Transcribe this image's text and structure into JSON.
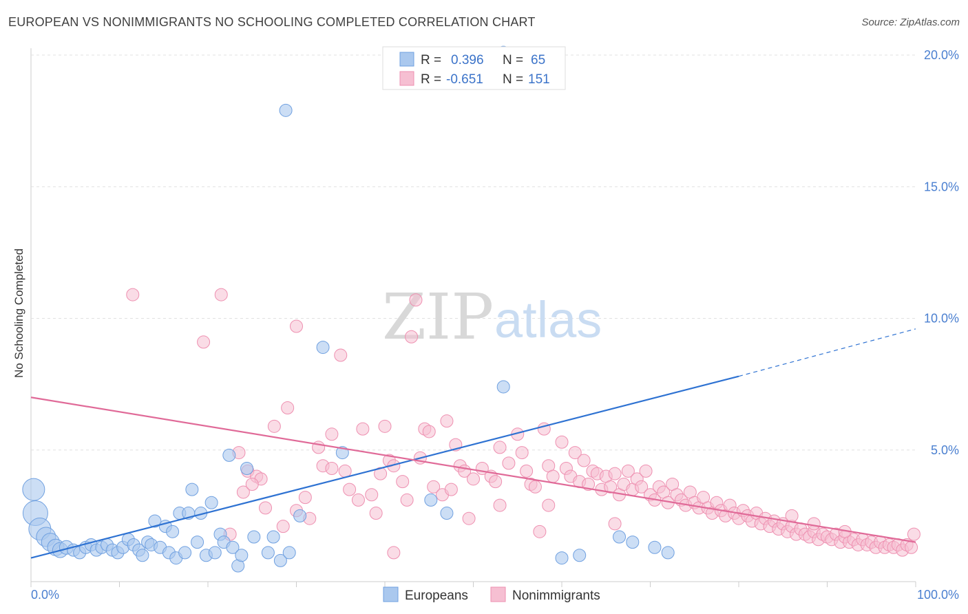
{
  "header": {
    "title": "EUROPEAN VS NONIMMIGRANTS NO SCHOOLING COMPLETED CORRELATION CHART",
    "source": "Source: ZipAtlas.com"
  },
  "watermark": {
    "zip": "ZIP",
    "atlas": "atlas"
  },
  "colors": {
    "europeans": "#6fa0e0",
    "europeans_fill": "#aac8ee",
    "europeans_line": "#2e72d2",
    "nonimmigrants": "#ee8fb0",
    "nonimmigrants_fill": "#f6bfd2",
    "nonimmigrants_line": "#e06a98",
    "grid": "#e0e0e0",
    "axis_text": "#4a7fd0"
  },
  "legend": {
    "rows": [
      {
        "r_label": "R =",
        "r_value": "0.396",
        "n_label": "N =",
        "n_value": "65"
      },
      {
        "r_label": "R =",
        "r_value": "-0.651",
        "n_label": "N =",
        "n_value": "151"
      }
    ],
    "bottom": [
      "Europeans",
      "Nonimmigrants"
    ]
  },
  "chart_data": {
    "type": "scatter",
    "title": "EUROPEAN VS NONIMMIGRANTS NO SCHOOLING COMPLETED CORRELATION CHART",
    "xlabel": "",
    "ylabel": "No Schooling Completed",
    "xlim": [
      0,
      100
    ],
    "ylim": [
      0,
      20.5
    ],
    "x_tick_labels": [
      "0.0%",
      "100.0%"
    ],
    "y_ticks": [
      5,
      10,
      15,
      20
    ],
    "y_tick_labels": [
      "5.0%",
      "10.0%",
      "15.0%",
      "20.0%"
    ],
    "grid": true,
    "legend_position": "top-center",
    "series": [
      {
        "name": "Europeans",
        "r": 0.396,
        "n": 65,
        "trend": {
          "x": [
            0,
            80
          ],
          "y": [
            0.9,
            7.8
          ],
          "dashed_to": [
            100,
            9.6
          ]
        },
        "points": [
          [
            0.3,
            3.5,
            16
          ],
          [
            0.5,
            2.6,
            18
          ],
          [
            1.0,
            2.0,
            16
          ],
          [
            1.7,
            1.7,
            14
          ],
          [
            2.2,
            1.5,
            13
          ],
          [
            2.8,
            1.3,
            12
          ],
          [
            3.3,
            1.2,
            11
          ],
          [
            4.0,
            1.3,
            10
          ],
          [
            4.8,
            1.2,
            9
          ],
          [
            5.5,
            1.1,
            9
          ],
          [
            6.2,
            1.3,
            9
          ],
          [
            6.8,
            1.4,
            9
          ],
          [
            7.4,
            1.2,
            9
          ],
          [
            8.0,
            1.3,
            9
          ],
          [
            8.6,
            1.4,
            9
          ],
          [
            9.2,
            1.2,
            9
          ],
          [
            9.8,
            1.1,
            9
          ],
          [
            10.4,
            1.3,
            9
          ],
          [
            11.0,
            1.6,
            9
          ],
          [
            11.6,
            1.4,
            9
          ],
          [
            12.2,
            1.2,
            9
          ],
          [
            12.6,
            1.0,
            9
          ],
          [
            13.2,
            1.5,
            9
          ],
          [
            13.6,
            1.4,
            9
          ],
          [
            14.0,
            2.3,
            9
          ],
          [
            14.6,
            1.3,
            9
          ],
          [
            15.2,
            2.1,
            9
          ],
          [
            15.6,
            1.1,
            9
          ],
          [
            16.0,
            1.9,
            9
          ],
          [
            16.4,
            0.9,
            9
          ],
          [
            16.8,
            2.6,
            9
          ],
          [
            17.4,
            1.1,
            9
          ],
          [
            17.8,
            2.6,
            9
          ],
          [
            18.2,
            3.5,
            9
          ],
          [
            18.8,
            1.5,
            9
          ],
          [
            19.2,
            2.6,
            9
          ],
          [
            19.8,
            1.0,
            9
          ],
          [
            20.4,
            3.0,
            9
          ],
          [
            20.8,
            1.1,
            9
          ],
          [
            21.4,
            1.8,
            9
          ],
          [
            21.8,
            1.5,
            9
          ],
          [
            22.4,
            4.8,
            9
          ],
          [
            22.8,
            1.3,
            9
          ],
          [
            23.4,
            0.6,
            9
          ],
          [
            23.8,
            1.0,
            9
          ],
          [
            24.4,
            4.3,
            9
          ],
          [
            25.2,
            1.7,
            9
          ],
          [
            26.8,
            1.1,
            9
          ],
          [
            27.4,
            1.7,
            9
          ],
          [
            28.2,
            0.8,
            9
          ],
          [
            28.8,
            17.9,
            9
          ],
          [
            29.2,
            1.1,
            9
          ],
          [
            30.4,
            2.5,
            9
          ],
          [
            33.0,
            8.9,
            9
          ],
          [
            35.2,
            4.9,
            9
          ],
          [
            45.2,
            3.1,
            9
          ],
          [
            47.0,
            2.6,
            9
          ],
          [
            53.4,
            20.1,
            9
          ],
          [
            53.4,
            7.4,
            9
          ],
          [
            60.0,
            0.9,
            9
          ],
          [
            62.0,
            1.0,
            9
          ],
          [
            66.5,
            1.7,
            9
          ],
          [
            68.0,
            1.5,
            9
          ],
          [
            70.5,
            1.3,
            9
          ],
          [
            72.0,
            1.1,
            9
          ]
        ]
      },
      {
        "name": "Nonimmigrants",
        "r": -0.651,
        "n": 151,
        "trend": {
          "x": [
            0,
            100
          ],
          "y": [
            7.0,
            1.5
          ]
        },
        "points": [
          [
            11.5,
            10.9
          ],
          [
            21.5,
            10.9
          ],
          [
            19.5,
            9.1
          ],
          [
            30.0,
            9.7
          ],
          [
            35.0,
            8.6
          ],
          [
            43.5,
            10.7
          ],
          [
            43.0,
            9.3
          ],
          [
            29.0,
            6.6
          ],
          [
            34.0,
            5.6
          ],
          [
            37.5,
            5.8
          ],
          [
            40.0,
            5.9
          ],
          [
            44.5,
            5.8
          ],
          [
            45.0,
            5.7
          ],
          [
            47.0,
            6.1
          ],
          [
            23.5,
            4.9
          ],
          [
            24.5,
            4.2
          ],
          [
            25.5,
            4.0
          ],
          [
            26.0,
            3.9
          ],
          [
            24.0,
            3.4
          ],
          [
            25.0,
            3.7
          ],
          [
            26.5,
            2.8
          ],
          [
            28.5,
            2.1
          ],
          [
            22.5,
            1.8
          ],
          [
            30.0,
            2.7
          ],
          [
            31.0,
            3.2
          ],
          [
            31.5,
            2.4
          ],
          [
            33.0,
            4.4
          ],
          [
            34.0,
            4.3
          ],
          [
            35.5,
            4.2
          ],
          [
            36.0,
            3.5
          ],
          [
            37.0,
            3.1
          ],
          [
            38.5,
            3.3
          ],
          [
            39.0,
            2.6
          ],
          [
            40.5,
            4.6
          ],
          [
            41.0,
            4.4
          ],
          [
            42.0,
            3.8
          ],
          [
            42.5,
            3.1
          ],
          [
            44.0,
            4.7
          ],
          [
            45.5,
            3.6
          ],
          [
            46.5,
            3.3
          ],
          [
            47.5,
            3.5
          ],
          [
            48.0,
            5.2
          ],
          [
            48.5,
            4.4
          ],
          [
            49.0,
            4.2
          ],
          [
            50.0,
            3.9
          ],
          [
            51.0,
            4.3
          ],
          [
            52.0,
            4.0
          ],
          [
            52.5,
            3.8
          ],
          [
            53.0,
            5.1
          ],
          [
            54.0,
            4.5
          ],
          [
            55.0,
            5.6
          ],
          [
            55.5,
            4.9
          ],
          [
            56.0,
            4.2
          ],
          [
            56.5,
            3.7
          ],
          [
            57.0,
            3.6
          ],
          [
            58.0,
            5.8
          ],
          [
            58.5,
            4.4
          ],
          [
            59.0,
            4.0
          ],
          [
            60.0,
            5.3
          ],
          [
            60.5,
            4.3
          ],
          [
            61.0,
            4.0
          ],
          [
            61.5,
            4.9
          ],
          [
            62.0,
            3.8
          ],
          [
            62.5,
            4.6
          ],
          [
            63.0,
            3.7
          ],
          [
            63.5,
            4.2
          ],
          [
            64.0,
            4.1
          ],
          [
            64.5,
            3.5
          ],
          [
            65.0,
            4.0
          ],
          [
            65.5,
            3.6
          ],
          [
            66.0,
            4.1
          ],
          [
            66.5,
            3.3
          ],
          [
            67.0,
            3.7
          ],
          [
            67.5,
            4.2
          ],
          [
            68.0,
            3.5
          ],
          [
            68.5,
            3.9
          ],
          [
            69.0,
            3.6
          ],
          [
            69.5,
            4.2
          ],
          [
            70.0,
            3.3
          ],
          [
            70.5,
            3.1
          ],
          [
            71.0,
            3.6
          ],
          [
            71.5,
            3.4
          ],
          [
            72.0,
            3.0
          ],
          [
            72.5,
            3.7
          ],
          [
            73.0,
            3.3
          ],
          [
            73.5,
            3.1
          ],
          [
            74.0,
            2.9
          ],
          [
            74.5,
            3.4
          ],
          [
            75.0,
            3.0
          ],
          [
            75.5,
            2.8
          ],
          [
            76.0,
            3.2
          ],
          [
            76.5,
            2.8
          ],
          [
            77.0,
            2.6
          ],
          [
            77.5,
            3.0
          ],
          [
            78.0,
            2.7
          ],
          [
            78.5,
            2.5
          ],
          [
            79.0,
            2.9
          ],
          [
            79.5,
            2.6
          ],
          [
            80.0,
            2.4
          ],
          [
            80.5,
            2.7
          ],
          [
            81.0,
            2.5
          ],
          [
            81.5,
            2.3
          ],
          [
            82.0,
            2.6
          ],
          [
            82.5,
            2.2
          ],
          [
            83.0,
            2.4
          ],
          [
            83.5,
            2.1
          ],
          [
            84.0,
            2.3
          ],
          [
            84.5,
            2.0
          ],
          [
            85.0,
            2.2
          ],
          [
            85.5,
            1.9
          ],
          [
            86.0,
            2.1
          ],
          [
            86.5,
            1.8
          ],
          [
            87.0,
            2.0
          ],
          [
            87.5,
            1.8
          ],
          [
            88.0,
            1.7
          ],
          [
            88.5,
            1.9
          ],
          [
            89.0,
            1.6
          ],
          [
            89.5,
            1.8
          ],
          [
            90.0,
            1.7
          ],
          [
            90.5,
            1.6
          ],
          [
            91.0,
            1.8
          ],
          [
            91.5,
            1.5
          ],
          [
            92.0,
            1.7
          ],
          [
            92.5,
            1.5
          ],
          [
            93.0,
            1.6
          ],
          [
            93.5,
            1.4
          ],
          [
            94.0,
            1.6
          ],
          [
            94.5,
            1.4
          ],
          [
            95.0,
            1.5
          ],
          [
            95.5,
            1.3
          ],
          [
            96.0,
            1.5
          ],
          [
            96.5,
            1.3
          ],
          [
            97.0,
            1.4
          ],
          [
            97.5,
            1.3
          ],
          [
            98.0,
            1.4
          ],
          [
            98.5,
            1.2
          ],
          [
            99.0,
            1.4
          ],
          [
            99.5,
            1.3
          ],
          [
            99.8,
            1.8
          ],
          [
            41.0,
            1.1
          ],
          [
            49.5,
            2.4
          ],
          [
            53.0,
            2.9
          ],
          [
            57.5,
            1.9
          ],
          [
            27.5,
            5.9
          ],
          [
            32.5,
            5.1
          ],
          [
            39.5,
            4.1
          ],
          [
            58.5,
            2.9
          ],
          [
            66.0,
            2.2
          ],
          [
            86.0,
            2.5
          ],
          [
            88.5,
            2.2
          ],
          [
            92.0,
            1.9
          ]
        ]
      }
    ]
  },
  "ylabel": "No Schooling Completed"
}
